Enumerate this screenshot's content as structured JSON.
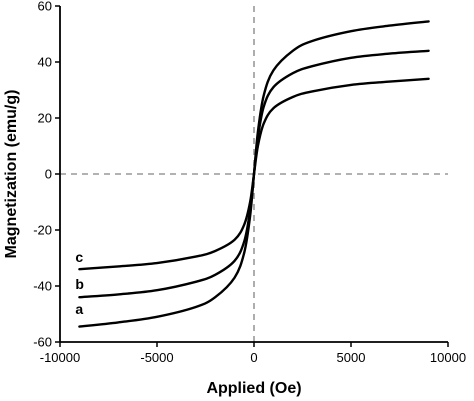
{
  "chart_data": {
    "type": "line",
    "xlabel": "Applied (Oe)",
    "ylabel": "Magnetization (emu/g)",
    "xlim": [
      -10000,
      10000
    ],
    "ylim": [
      -60,
      60
    ],
    "x_ticks": [
      -10000,
      -5000,
      0,
      5000,
      10000
    ],
    "y_ticks": [
      -60,
      -40,
      -20,
      0,
      20,
      40,
      60
    ],
    "reference_lines": {
      "x": 0,
      "y": 0,
      "style": "dashed"
    },
    "grid": false,
    "legend": "none",
    "line_color": "#000000",
    "reference_color": "#999999",
    "series": [
      {
        "name": "a",
        "x": [
          -9000,
          -7000,
          -5000,
          -3000,
          -2000,
          -1000,
          -500,
          -200,
          0,
          200,
          500,
          1000,
          2000,
          3000,
          5000,
          7000,
          9000
        ],
        "y": [
          -54.5,
          -53,
          -51,
          -47.5,
          -44,
          -37,
          -28,
          -15,
          0,
          15,
          28,
          37,
          44,
          47.5,
          51,
          53,
          54.5
        ]
      },
      {
        "name": "b",
        "x": [
          -9000,
          -7000,
          -5000,
          -3000,
          -2000,
          -1000,
          -500,
          -200,
          0,
          200,
          500,
          1000,
          2000,
          3000,
          5000,
          7000,
          9000
        ],
        "y": [
          -44,
          -43,
          -41.5,
          -38.5,
          -36,
          -31,
          -24,
          -13,
          0,
          13,
          24,
          31,
          36,
          38.5,
          41.5,
          43,
          44
        ]
      },
      {
        "name": "c",
        "x": [
          -9000,
          -7000,
          -5000,
          -3000,
          -2000,
          -1000,
          -500,
          -200,
          0,
          200,
          500,
          1000,
          2000,
          3000,
          5000,
          7000,
          9000
        ],
        "y": [
          -34,
          -33,
          -31.8,
          -29.5,
          -27.5,
          -23.5,
          -18,
          -10,
          0,
          10,
          18,
          23.5,
          27.5,
          29.5,
          31.8,
          33,
          34
        ]
      }
    ],
    "annotations": [
      {
        "text": "a",
        "x": -9000,
        "y": -50
      },
      {
        "text": "b",
        "x": -9000,
        "y": -41
      },
      {
        "text": "c",
        "x": -9000,
        "y": -31.5
      }
    ]
  }
}
